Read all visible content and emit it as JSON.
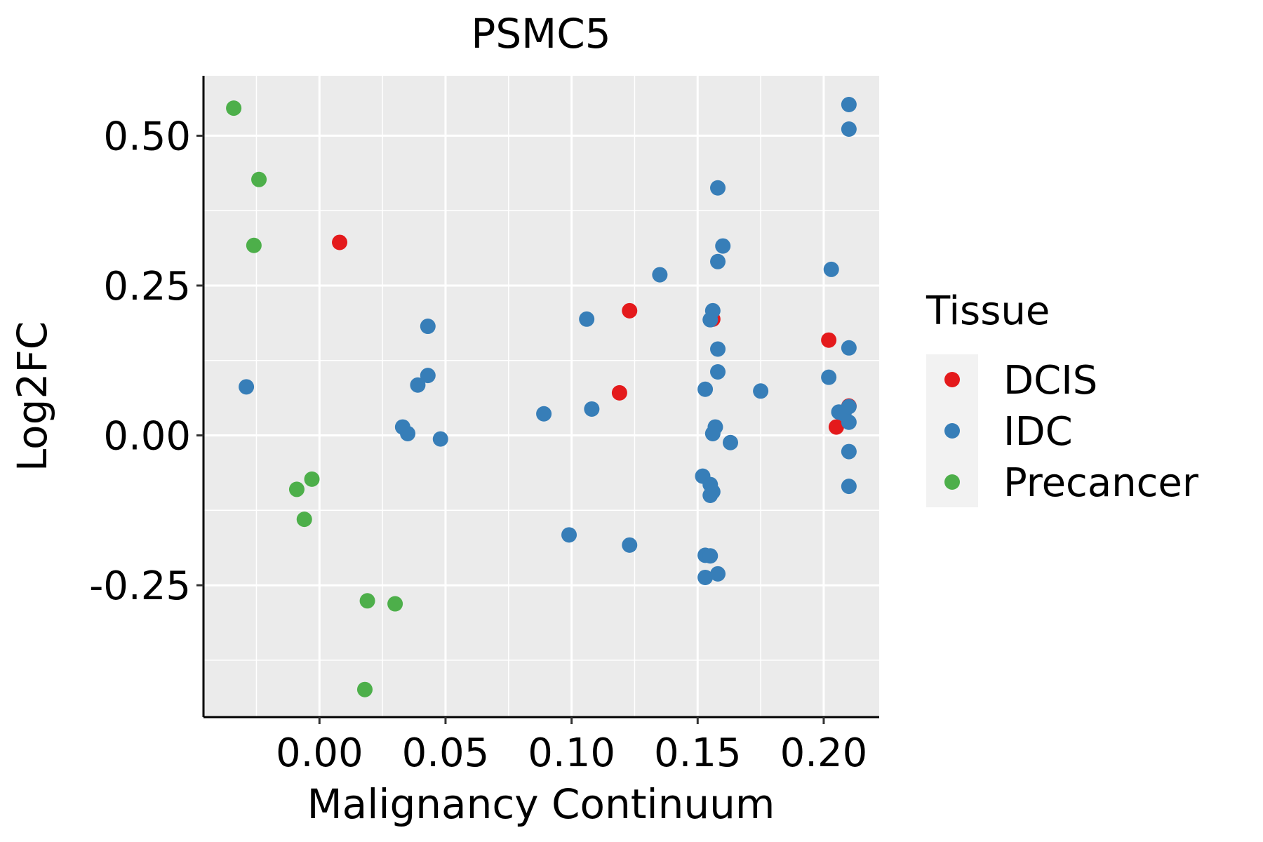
{
  "chart_data": {
    "type": "scatter",
    "title": "PSMC5",
    "xlabel": "Malignancy Continuum",
    "ylabel": "Log2FC",
    "xlim": [
      -0.046,
      0.222
    ],
    "ylim": [
      -0.47,
      0.6
    ],
    "xticks": [
      0.0,
      0.05,
      0.1,
      0.15,
      0.2
    ],
    "xtick_labels": [
      "0.00",
      "0.05",
      "0.10",
      "0.15",
      "0.20"
    ],
    "yticks": [
      -0.25,
      0.0,
      0.25,
      0.5
    ],
    "ytick_labels": [
      "-0.25",
      "0.00",
      "0.25",
      "0.50"
    ],
    "grid": true,
    "legend": {
      "title": "Tissue",
      "position": "right",
      "entries": [
        "DCIS",
        "IDC",
        "Precancer"
      ]
    },
    "colors": {
      "DCIS": "#e41a1c",
      "IDC": "#377eb8",
      "Precancer": "#4daf4a",
      "panel_bg": "#ebebeb",
      "grid": "#ffffff"
    },
    "series": [
      {
        "name": "Precancer",
        "points": [
          [
            -0.034,
            0.546
          ],
          [
            -0.024,
            0.427
          ],
          [
            -0.026,
            0.317
          ],
          [
            -0.009,
            -0.09
          ],
          [
            -0.003,
            -0.073
          ],
          [
            -0.006,
            -0.14
          ],
          [
            0.019,
            -0.276
          ],
          [
            0.03,
            -0.281
          ],
          [
            0.018,
            -0.424
          ]
        ]
      },
      {
        "name": "DCIS",
        "points": [
          [
            0.008,
            0.322
          ],
          [
            0.123,
            0.208
          ],
          [
            0.119,
            0.071
          ],
          [
            0.156,
            0.194
          ],
          [
            0.202,
            0.159
          ],
          [
            0.21,
            0.049
          ],
          [
            0.205,
            0.014
          ]
        ]
      },
      {
        "name": "IDC",
        "points": [
          [
            -0.029,
            0.081
          ],
          [
            0.033,
            0.014
          ],
          [
            0.035,
            0.003
          ],
          [
            0.043,
            0.182
          ],
          [
            0.039,
            0.084
          ],
          [
            0.043,
            0.1
          ],
          [
            0.048,
            -0.006
          ],
          [
            0.089,
            0.036
          ],
          [
            0.106,
            0.194
          ],
          [
            0.108,
            0.044
          ],
          [
            0.099,
            -0.166
          ],
          [
            0.123,
            -0.183
          ],
          [
            0.135,
            0.268
          ],
          [
            0.158,
            0.413
          ],
          [
            0.16,
            0.316
          ],
          [
            0.158,
            0.29
          ],
          [
            0.156,
            0.208
          ],
          [
            0.155,
            0.193
          ],
          [
            0.158,
            0.144
          ],
          [
            0.158,
            0.106
          ],
          [
            0.153,
            0.077
          ],
          [
            0.157,
            0.014
          ],
          [
            0.156,
            0.003
          ],
          [
            0.163,
            -0.012
          ],
          [
            0.152,
            -0.068
          ],
          [
            0.155,
            -0.082
          ],
          [
            0.156,
            -0.094
          ],
          [
            0.155,
            -0.1
          ],
          [
            0.153,
            -0.2
          ],
          [
            0.155,
            -0.201
          ],
          [
            0.153,
            -0.237
          ],
          [
            0.158,
            -0.231
          ],
          [
            0.175,
            0.074
          ],
          [
            0.203,
            0.277
          ],
          [
            0.202,
            0.097
          ],
          [
            0.21,
            0.552
          ],
          [
            0.21,
            0.511
          ],
          [
            0.21,
            0.146
          ],
          [
            0.206,
            0.039
          ],
          [
            0.208,
            0.036
          ],
          [
            0.21,
            0.048
          ],
          [
            0.21,
            0.022
          ],
          [
            0.21,
            -0.027
          ],
          [
            0.21,
            -0.085
          ]
        ]
      }
    ]
  }
}
